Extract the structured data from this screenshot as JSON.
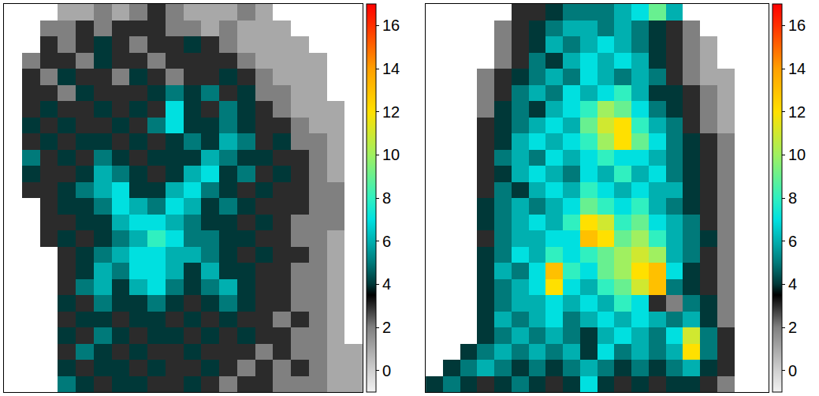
{
  "chart_data": [
    {
      "type": "heatmap",
      "tick_labels": false,
      "xlim": [
        -0.5,
        19.5
      ],
      "ylim": [
        23.5,
        -0.5
      ],
      "zlim": [
        -1,
        17
      ],
      "zticks": [
        0,
        2,
        4,
        6,
        8,
        10,
        12,
        14,
        16
      ],
      "z": [
        [
          null,
          null,
          null,
          1,
          1,
          2,
          1,
          2,
          3,
          2,
          1,
          1,
          1,
          2,
          1,
          null,
          null,
          null,
          null,
          null
        ],
        [
          null,
          null,
          2,
          2,
          3,
          2,
          3,
          3,
          3,
          2,
          2,
          1,
          2,
          1,
          1,
          1,
          null,
          null,
          null,
          null
        ],
        [
          null,
          null,
          3,
          2,
          3,
          4,
          3,
          2,
          3,
          3,
          4,
          3,
          2,
          1,
          1,
          1,
          1,
          null,
          null,
          null
        ],
        [
          null,
          2,
          3,
          3,
          2,
          4,
          3,
          3,
          2,
          3,
          3,
          3,
          3,
          2,
          1,
          1,
          1,
          1,
          null,
          null
        ],
        [
          null,
          3,
          2,
          4,
          3,
          3,
          2,
          4,
          3,
          2,
          3,
          3,
          4,
          3,
          2,
          1,
          1,
          1,
          null,
          null
        ],
        [
          null,
          3,
          3,
          2,
          4,
          3,
          3,
          3,
          4,
          5,
          4,
          5,
          3,
          4,
          2,
          2,
          1,
          1,
          null,
          null
        ],
        [
          null,
          3,
          4,
          3,
          3,
          4,
          3,
          4,
          3,
          7,
          4,
          3,
          5,
          4,
          3,
          2,
          1,
          1,
          1,
          null
        ],
        [
          null,
          4,
          3,
          4,
          3,
          3,
          4,
          3,
          5,
          7,
          4,
          4,
          5,
          4,
          3,
          3,
          2,
          1,
          1,
          null
        ],
        [
          null,
          3,
          4,
          3,
          4,
          4,
          3,
          4,
          3,
          4,
          5,
          4,
          6,
          5,
          3,
          4,
          2,
          2,
          1,
          null
        ],
        [
          null,
          5,
          3,
          4,
          3,
          5,
          4,
          3,
          4,
          4,
          4,
          6,
          5,
          4,
          4,
          3,
          3,
          2,
          1,
          null
        ],
        [
          null,
          4,
          3,
          3,
          4,
          6,
          5,
          4,
          3,
          4,
          6,
          7,
          4,
          5,
          3,
          4,
          3,
          2,
          1,
          null
        ],
        [
          null,
          3,
          3,
          4,
          5,
          6,
          7,
          4,
          4,
          6,
          7,
          5,
          4,
          3,
          4,
          3,
          3,
          2,
          2,
          null
        ],
        [
          null,
          null,
          3,
          4,
          4,
          5,
          7,
          6,
          5,
          7,
          6,
          4,
          5,
          4,
          3,
          3,
          3,
          2,
          2,
          null
        ],
        [
          null,
          null,
          3,
          3,
          4,
          4,
          6,
          7,
          7,
          6,
          5,
          4,
          4,
          3,
          4,
          3,
          2,
          2,
          2,
          null
        ],
        [
          null,
          null,
          3,
          4,
          3,
          4,
          5,
          6,
          8,
          7,
          5,
          5,
          4,
          4,
          3,
          3,
          2,
          2,
          1,
          null
        ],
        [
          null,
          null,
          null,
          3,
          4,
          5,
          6,
          7,
          7,
          6,
          6,
          5,
          4,
          3,
          4,
          3,
          3,
          2,
          1,
          null
        ],
        [
          null,
          null,
          null,
          3,
          4,
          6,
          5,
          7,
          7,
          6,
          4,
          6,
          4,
          4,
          3,
          3,
          2,
          2,
          1,
          null
        ],
        [
          null,
          null,
          null,
          3,
          5,
          6,
          4,
          6,
          7,
          5,
          4,
          5,
          6,
          4,
          3,
          3,
          2,
          2,
          1,
          null
        ],
        [
          null,
          null,
          null,
          4,
          3,
          5,
          4,
          4,
          5,
          4,
          3,
          4,
          5,
          4,
          3,
          3,
          2,
          2,
          1,
          null
        ],
        [
          null,
          null,
          null,
          3,
          4,
          4,
          3,
          4,
          4,
          3,
          4,
          3,
          4,
          3,
          3,
          2,
          3,
          2,
          1,
          null
        ],
        [
          null,
          null,
          null,
          4,
          3,
          5,
          4,
          3,
          4,
          4,
          3,
          4,
          3,
          4,
          3,
          3,
          2,
          2,
          1,
          null
        ],
        [
          null,
          null,
          null,
          3,
          5,
          4,
          3,
          4,
          3,
          3,
          4,
          3,
          3,
          3,
          2,
          3,
          2,
          2,
          1,
          1
        ],
        [
          null,
          null,
          null,
          4,
          3,
          4,
          4,
          3,
          4,
          3,
          3,
          4,
          3,
          2,
          3,
          2,
          3,
          2,
          1,
          1
        ],
        [
          null,
          null,
          null,
          5,
          4,
          3,
          4,
          4,
          3,
          3,
          4,
          3,
          2,
          3,
          3,
          2,
          2,
          2,
          1,
          1
        ]
      ]
    },
    {
      "type": "heatmap",
      "tick_labels": false,
      "xlim": [
        -0.5,
        19.5
      ],
      "ylim": [
        23.5,
        -0.5
      ],
      "zlim": [
        -1,
        17
      ],
      "zticks": [
        0,
        2,
        4,
        6,
        8,
        10,
        12,
        14,
        16
      ],
      "z": [
        [
          null,
          null,
          null,
          null,
          null,
          3,
          3,
          4,
          5,
          5,
          5,
          6,
          7,
          9,
          6,
          null,
          null,
          null,
          null,
          null
        ],
        [
          null,
          null,
          null,
          null,
          2,
          3,
          4,
          5,
          6,
          6,
          5,
          6,
          5,
          4,
          3,
          2,
          null,
          null,
          null,
          null
        ],
        [
          null,
          null,
          null,
          null,
          2,
          3,
          4,
          6,
          5,
          6,
          7,
          6,
          5,
          4,
          3,
          2,
          1,
          null,
          null,
          null
        ],
        [
          null,
          null,
          null,
          null,
          2,
          3,
          5,
          4,
          6,
          7,
          6,
          7,
          6,
          4,
          3,
          2,
          1,
          null,
          null,
          null
        ],
        [
          null,
          null,
          null,
          2,
          3,
          4,
          5,
          6,
          5,
          7,
          6,
          5,
          6,
          5,
          3,
          2,
          1,
          1,
          null,
          null
        ],
        [
          null,
          null,
          null,
          2,
          3,
          5,
          6,
          5,
          7,
          6,
          7,
          8,
          6,
          4,
          4,
          3,
          2,
          1,
          null,
          null
        ],
        [
          null,
          null,
          null,
          2,
          4,
          5,
          4,
          6,
          7,
          8,
          10,
          9,
          7,
          5,
          4,
          3,
          2,
          1,
          null,
          null
        ],
        [
          null,
          null,
          null,
          3,
          4,
          5,
          6,
          7,
          6,
          9,
          11,
          12,
          8,
          6,
          5,
          3,
          2,
          1,
          null,
          null
        ],
        [
          null,
          null,
          null,
          3,
          4,
          6,
          7,
          6,
          7,
          8,
          10,
          12,
          9,
          7,
          5,
          4,
          3,
          2,
          null,
          null
        ],
        [
          null,
          null,
          null,
          3,
          5,
          6,
          5,
          7,
          6,
          7,
          8,
          7,
          7,
          6,
          5,
          4,
          3,
          2,
          null,
          null
        ],
        [
          null,
          null,
          null,
          3,
          4,
          6,
          7,
          6,
          5,
          7,
          6,
          8,
          6,
          7,
          5,
          4,
          3,
          2,
          null,
          null
        ],
        [
          null,
          null,
          null,
          3,
          5,
          4,
          6,
          7,
          6,
          8,
          7,
          6,
          7,
          6,
          6,
          4,
          3,
          2,
          null,
          null
        ],
        [
          null,
          null,
          null,
          4,
          5,
          6,
          5,
          6,
          7,
          9,
          8,
          7,
          8,
          6,
          5,
          4,
          3,
          2,
          null,
          null
        ],
        [
          null,
          null,
          null,
          4,
          5,
          6,
          7,
          6,
          8,
          12,
          11,
          8,
          9,
          7,
          6,
          5,
          3,
          2,
          null,
          null
        ],
        [
          null,
          null,
          null,
          3,
          5,
          6,
          6,
          7,
          7,
          13,
          12,
          9,
          10,
          8,
          6,
          5,
          4,
          2,
          null,
          null
        ],
        [
          null,
          null,
          null,
          4,
          5,
          7,
          6,
          8,
          7,
          8,
          9,
          10,
          11,
          10,
          6,
          5,
          3,
          2,
          null,
          null
        ],
        [
          null,
          null,
          null,
          4,
          6,
          5,
          7,
          13,
          8,
          7,
          9,
          10,
          12,
          13,
          7,
          4,
          3,
          2,
          null,
          null
        ],
        [
          null,
          null,
          null,
          4,
          5,
          6,
          7,
          12,
          7,
          6,
          8,
          9,
          11,
          13,
          5,
          4,
          3,
          2,
          null,
          null
        ],
        [
          null,
          null,
          null,
          4,
          5,
          6,
          6,
          7,
          6,
          7,
          6,
          8,
          7,
          3,
          2,
          5,
          4,
          2,
          null,
          null
        ],
        [
          null,
          null,
          null,
          4,
          6,
          5,
          6,
          7,
          5,
          6,
          7,
          6,
          7,
          6,
          5,
          6,
          4,
          2,
          null,
          null
        ],
        [
          null,
          null,
          null,
          4,
          5,
          6,
          5,
          6,
          5,
          4,
          6,
          7,
          6,
          5,
          7,
          11,
          5,
          3,
          null,
          null
        ],
        [
          null,
          null,
          4,
          5,
          6,
          5,
          6,
          5,
          6,
          4,
          7,
          5,
          6,
          5,
          6,
          12,
          5,
          3,
          null,
          null
        ],
        [
          null,
          4,
          5,
          6,
          5,
          4,
          5,
          4,
          5,
          6,
          5,
          4,
          5,
          4,
          5,
          6,
          4,
          3,
          null,
          null
        ],
        [
          4,
          5,
          4,
          3,
          4,
          5,
          4,
          3,
          4,
          7,
          4,
          3,
          4,
          3,
          4,
          4,
          3,
          2,
          null,
          null
        ]
      ]
    }
  ]
}
